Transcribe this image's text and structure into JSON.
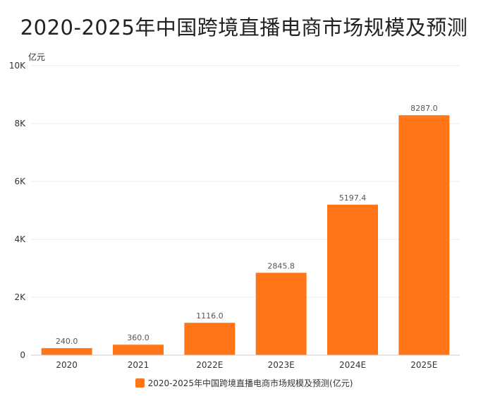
{
  "title": "2020-2025年中国跨境直播电商市场规模及预测",
  "colors": {
    "bar": "#FF7518",
    "grid": "#ececec",
    "axis": "#cccccc",
    "tick_text": "#333333",
    "label_text": "#555555"
  },
  "chart_data": {
    "type": "bar",
    "title": "2020-2025年中国跨境直播电商市场规模及预测",
    "xlabel": "",
    "ylabel": "亿元",
    "categories": [
      "2020",
      "2021",
      "2022E",
      "2023E",
      "2024E",
      "2025E"
    ],
    "series": [
      {
        "name": "2020-2025年中国跨境直播电商市场规模及预测(亿元)",
        "values": [
          240.0,
          360.0,
          1116.0,
          2845.8,
          5197.4,
          8287.0
        ],
        "value_labels": [
          "240.0",
          "360.0",
          "1116.0",
          "2845.8",
          "5197.4",
          "8287.0"
        ]
      }
    ],
    "ylim": [
      0,
      10000
    ],
    "yticks": [
      0,
      2000,
      4000,
      6000,
      8000,
      10000
    ],
    "ytick_labels": [
      "0",
      "2K",
      "4K",
      "6K",
      "8K",
      "10K"
    ],
    "grid": true,
    "legend_position": "bottom-center"
  }
}
